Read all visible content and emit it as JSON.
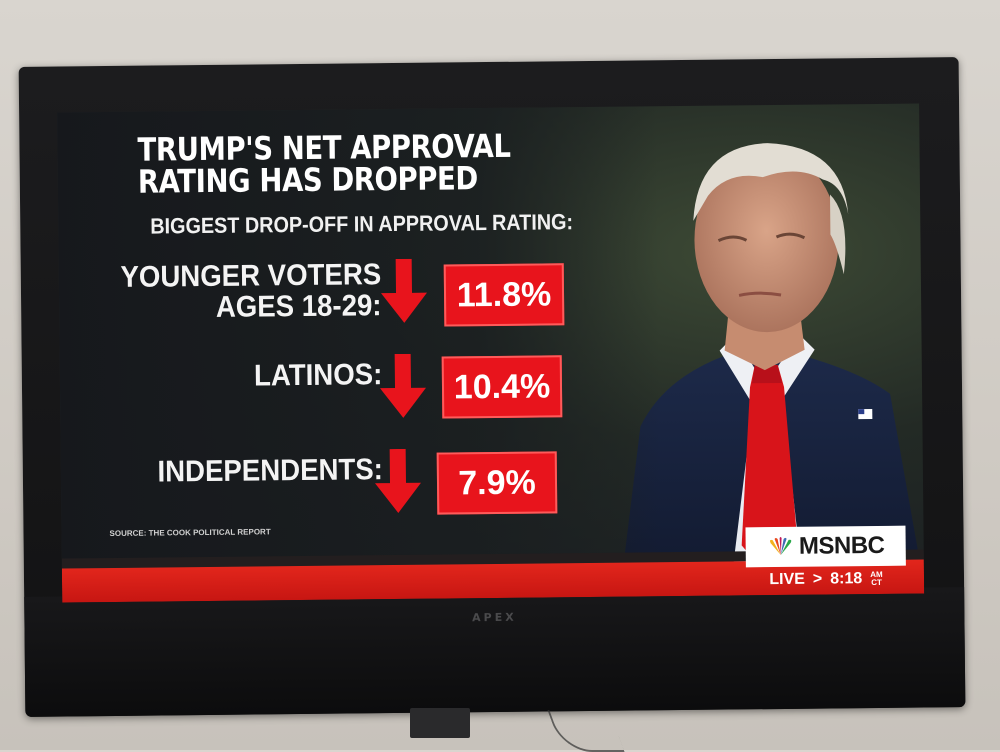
{
  "graphic": {
    "title": "TRUMP'S NET APPROVAL RATING HAS DROPPED",
    "subtitle": "BIGGEST DROP-OFF IN APPROVAL RATING:",
    "rows": [
      {
        "label_line1": "YOUNGER VOTERS",
        "label_line2": "AGES 18-29:",
        "value": "11.8%"
      },
      {
        "label_line1": "LATINOS:",
        "label_line2": "",
        "value": "10.4%"
      },
      {
        "label_line1": "INDEPENDENTS:",
        "label_line2": "",
        "value": "7.9%"
      }
    ],
    "source": "SOURCE: THE COOK POLITICAL REPORT"
  },
  "bug": {
    "network": "MSNBC",
    "live": "LIVE",
    "separator": ">",
    "time": "8:18",
    "ampm_top": "AM",
    "ampm_bottom": "CT"
  },
  "tv": {
    "brand": "APEX"
  },
  "colors": {
    "accent_red": "#e8141c",
    "bar_red": "#d41c16",
    "text_white": "#ffffff"
  }
}
